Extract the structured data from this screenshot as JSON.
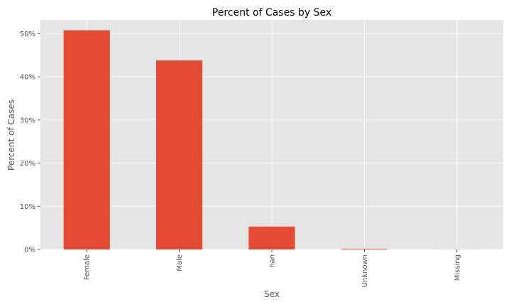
{
  "chart_data": {
    "type": "bar",
    "title": "Percent of Cases by Sex",
    "xlabel": "Sex",
    "ylabel": "Percent of Cases",
    "categories": [
      "Female",
      "Male",
      "nan",
      "Unknown",
      "Missing"
    ],
    "values": [
      50.8,
      43.8,
      5.3,
      0.15,
      0.02
    ],
    "ylim": [
      0,
      53.2
    ],
    "yticks": [
      0,
      10,
      20,
      30,
      40,
      50
    ],
    "ytick_labels": [
      "0%",
      "10%",
      "20%",
      "30%",
      "40%",
      "50%"
    ],
    "grid": true,
    "legend": "none",
    "colors": {
      "bar": "#E24A33",
      "plot_background": "#E5E5E5",
      "grid": "#FFFFFF"
    }
  }
}
